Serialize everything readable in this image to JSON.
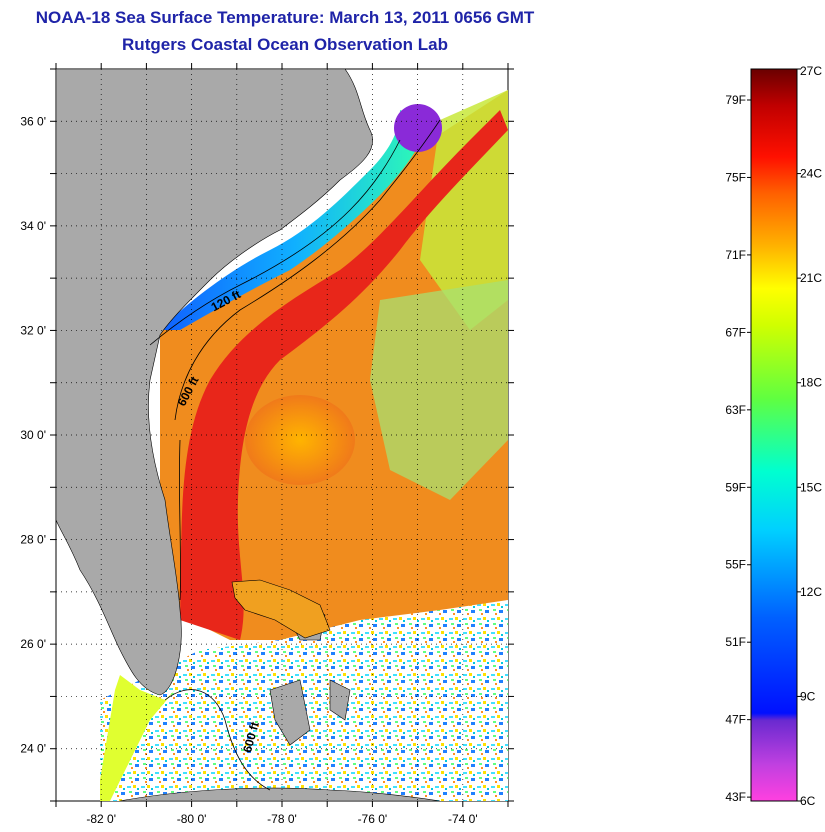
{
  "title": {
    "line1": "NOAA-18 Sea Surface Temperature:  March 13, 2011 0656 GMT",
    "line2": "Rutgers Coastal Ocean Observation Lab"
  },
  "map": {
    "lon_range": [
      -83,
      -73
    ],
    "lat_range": [
      23,
      37
    ],
    "lon_ticks": [
      {
        "value": -82,
        "label": "-82 0'"
      },
      {
        "value": -80,
        "label": "-80 0'"
      },
      {
        "value": -78,
        "label": "-78 0'"
      },
      {
        "value": -76,
        "label": "-76 0'"
      },
      {
        "value": -74,
        "label": "-74 0'"
      }
    ],
    "lat_ticks": [
      {
        "value": 24,
        "label": "24 0'"
      },
      {
        "value": 26,
        "label": "26 0'"
      },
      {
        "value": 28,
        "label": "28 0'"
      },
      {
        "value": 30,
        "label": "30 0'"
      },
      {
        "value": 32,
        "label": "32 0'"
      },
      {
        "value": 34,
        "label": "34 0'"
      },
      {
        "value": 36,
        "label": "36 0'"
      }
    ],
    "contour_labels": [
      {
        "text": "120 ft",
        "lon": -79.2,
        "lat": 32.5
      },
      {
        "text": "600 ft",
        "lon": -80.0,
        "lat": 30.8
      },
      {
        "text": "600 ft",
        "lon": -78.6,
        "lat": 24.2
      }
    ],
    "colors": {
      "land": "#a9a9a9",
      "nodata": "#ffffff",
      "gulf_stream": "#e8261a",
      "offshore": "#f08c1e"
    }
  },
  "colorbar": {
    "celsius": [
      {
        "value": 27,
        "label": "27C"
      },
      {
        "value": 24,
        "label": "24C"
      },
      {
        "value": 21,
        "label": "21C"
      },
      {
        "value": 18,
        "label": "18C"
      },
      {
        "value": 15,
        "label": "15C"
      },
      {
        "value": 12,
        "label": "12C"
      },
      {
        "value": 9,
        "label": "9C"
      },
      {
        "value": 6,
        "label": "6C"
      }
    ],
    "fahrenheit": [
      {
        "value": 79,
        "label": "79F"
      },
      {
        "value": 75,
        "label": "75F"
      },
      {
        "value": 71,
        "label": "71F"
      },
      {
        "value": 67,
        "label": "67F"
      },
      {
        "value": 63,
        "label": "63F"
      },
      {
        "value": 59,
        "label": "59F"
      },
      {
        "value": 55,
        "label": "55F"
      },
      {
        "value": 51,
        "label": "51F"
      },
      {
        "value": 47,
        "label": "47F"
      },
      {
        "value": 43,
        "label": "43F"
      }
    ],
    "range_c": [
      6,
      27
    ]
  }
}
